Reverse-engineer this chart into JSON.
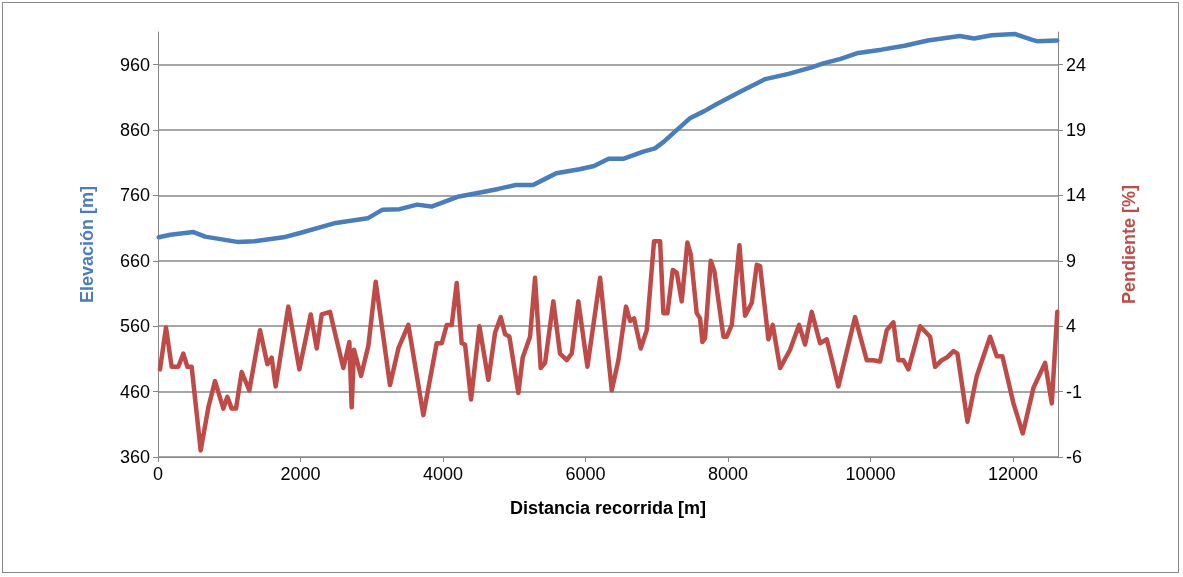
{
  "chart_data": {
    "type": "line",
    "xlabel": "Distancia recorrida [m]",
    "ylabel": "Elevación [m]",
    "y2label": "Pendiente [%]",
    "xlim": [
      0,
      12630
    ],
    "xticks": [
      0,
      2000,
      4000,
      6000,
      8000,
      10000,
      12000
    ],
    "ylim": [
      360,
      1010
    ],
    "yticks": [
      360,
      460,
      560,
      660,
      760,
      860,
      960
    ],
    "y2lim": [
      -6,
      26.5
    ],
    "y2ticks": [
      -6,
      -1,
      4,
      9,
      14,
      19,
      24
    ],
    "grid": "y",
    "marker": "none",
    "line_style": "solid",
    "series": [
      {
        "color": "#4a7ebb",
        "x": [
          10,
          173,
          498,
          661,
          1110,
          1354,
          1761,
          2006,
          2494,
          2942,
          3146,
          3391,
          3635,
          3838,
          4205,
          4449,
          4775,
          5019,
          5263,
          5427,
          5590,
          5916,
          6119,
          6323,
          6527,
          6811,
          6974,
          7096,
          7259,
          7463,
          7667,
          7830,
          8197,
          8522,
          8848,
          9173,
          9336,
          9580,
          9825,
          10152,
          10477,
          10803,
          11251,
          11454,
          11698,
          12025,
          12269,
          12335,
          12620
        ],
        "values": [
          696,
          700,
          704,
          697,
          689,
          690,
          696,
          703,
          718,
          725,
          738,
          739,
          746,
          743,
          758,
          763,
          770,
          776,
          776,
          785,
          794,
          800,
          805,
          816,
          816,
          827,
          832,
          842,
          858,
          878,
          889,
          899,
          920,
          938,
          946,
          956,
          962,
          969,
          978,
          983,
          989,
          997,
          1004,
          1000,
          1005,
          1007,
          998,
          996,
          997
        ]
      },
      {
        "color": "#be4b48",
        "axis": "y2",
        "x": [
          28,
          112,
          192,
          285,
          355,
          412,
          472,
          599,
          707,
          800,
          917,
          973,
          1034,
          1095,
          1174,
          1282,
          1432,
          1535,
          1595,
          1651,
          1829,
          1984,
          2143,
          2227,
          2297,
          2414,
          2461,
          2601,
          2685,
          2718,
          2751,
          2849,
          2952,
          3055,
          3256,
          3373,
          3513,
          3724,
          3911,
          3982,
          4052,
          4122,
          4192,
          4262,
          4309,
          4393,
          4510,
          4636,
          4730,
          4810,
          4870,
          4931,
          5057,
          5118,
          5221,
          5291,
          5371,
          5432,
          5548,
          5642,
          5736,
          5806,
          5899,
          6026,
          6204,
          6368,
          6461,
          6568,
          6625,
          6681,
          6775,
          6859,
          6961,
          7046,
          7092,
          7149,
          7224,
          7280,
          7350,
          7429,
          7476,
          7560,
          7607,
          7640,
          7677,
          7757,
          7808,
          7935,
          7981,
          8052,
          8159,
          8239,
          8333,
          8403,
          8449,
          8566,
          8627,
          8730,
          8870,
          8996,
          9081,
          9174,
          9291,
          9385,
          9548,
          9782,
          9946,
          10040,
          10133,
          10227,
          10320,
          10391,
          10461,
          10531,
          10695,
          10835,
          10905,
          10999,
          11069,
          11163,
          11219,
          11359,
          11490,
          11677,
          11771,
          11850,
          12005,
          12136,
          12286,
          12449,
          12543,
          12620
        ],
        "values": [
          0.7,
          3.9,
          0.9,
          0.9,
          1.9,
          0.9,
          0.9,
          -5.5,
          -2.2,
          -0.2,
          -2.3,
          -1.4,
          -2.3,
          -2.3,
          0.5,
          -0.9,
          3.7,
          1.1,
          1.6,
          -0.6,
          5.5,
          0.7,
          4.9,
          2.3,
          4.9,
          5.1,
          4.0,
          0.8,
          2.8,
          -2.2,
          2.2,
          0.2,
          2.5,
          7.4,
          -0.5,
          2.3,
          4.1,
          -2.8,
          2.7,
          2.7,
          4.1,
          4.1,
          7.3,
          2.7,
          2.6,
          -1.6,
          4.0,
          -0.1,
          3.5,
          4.7,
          3.4,
          3.2,
          -1.1,
          1.6,
          3.2,
          7.7,
          0.8,
          1.2,
          5.9,
          1.9,
          1.4,
          1.9,
          5.9,
          0.9,
          7.7,
          -0.9,
          1.4,
          5.5,
          4.4,
          4.6,
          2.3,
          3.7,
          10.5,
          10.5,
          5.0,
          5.0,
          8.3,
          8.1,
          5.9,
          10.4,
          9.5,
          5.0,
          4.6,
          2.8,
          3.1,
          9.0,
          8.2,
          3.2,
          3.2,
          4.1,
          10.2,
          4.8,
          5.8,
          8.7,
          8.6,
          3.0,
          4.1,
          0.8,
          2.2,
          4.1,
          2.6,
          5.1,
          2.7,
          3.0,
          -0.6,
          4.7,
          1.4,
          1.4,
          1.3,
          3.7,
          4.3,
          1.4,
          1.4,
          0.7,
          4.0,
          3.2,
          0.9,
          1.4,
          1.6,
          2.1,
          1.9,
          -3.3,
          0.2,
          3.2,
          1.7,
          1.7,
          -1.9,
          -4.2,
          -0.7,
          1.2,
          -1.9,
          5.1
        ]
      }
    ]
  }
}
